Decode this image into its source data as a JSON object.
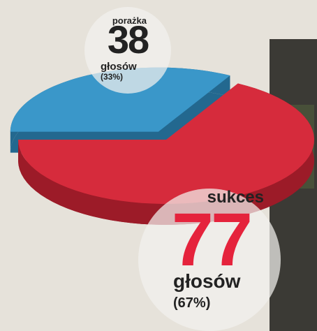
{
  "chart_data": {
    "type": "pie",
    "categories": [
      "porażka",
      "sukces"
    ],
    "values": [
      38,
      77
    ],
    "percent_labels": [
      "(33%)",
      "(67%)"
    ],
    "unit_label": "głosów",
    "colors": [
      "#3a97c9",
      "#d62b3c"
    ],
    "side_colors": [
      "#23688f",
      "#9c1b28"
    ]
  }
}
